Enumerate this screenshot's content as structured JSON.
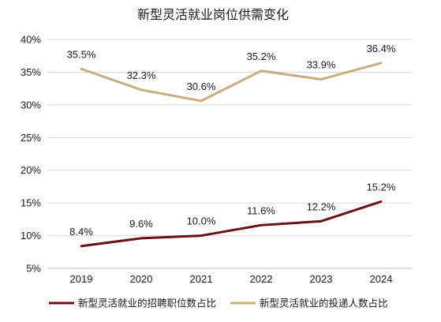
{
  "chart_data": {
    "type": "line",
    "title": "新型灵活就业岗位供需变化",
    "categories": [
      "2019",
      "2020",
      "2021",
      "2022",
      "2023",
      "2024"
    ],
    "series": [
      {
        "name": "新型灵活就业的招聘职位数占比",
        "values": [
          8.4,
          9.6,
          10.0,
          11.6,
          12.2,
          15.2
        ],
        "labels": [
          "8.4%",
          "9.6%",
          "10.0%",
          "11.6%",
          "12.2%",
          "15.2%"
        ],
        "color": "#6b0f14"
      },
      {
        "name": "新型灵活就业的投递人数占比",
        "values": [
          35.5,
          32.3,
          30.6,
          35.2,
          33.9,
          36.4
        ],
        "labels": [
          "35.5%",
          "32.3%",
          "30.6%",
          "35.2%",
          "33.9%",
          "36.4%"
        ],
        "color": "#c8ad82"
      }
    ],
    "ylim": [
      5,
      40
    ],
    "yticks": [
      5,
      10,
      15,
      20,
      25,
      30,
      35,
      40
    ],
    "ytick_labels": [
      "5%",
      "10%",
      "15%",
      "20%",
      "25%",
      "30%",
      "35%",
      "40%"
    ],
    "grid": true,
    "legend_position": "bottom"
  }
}
